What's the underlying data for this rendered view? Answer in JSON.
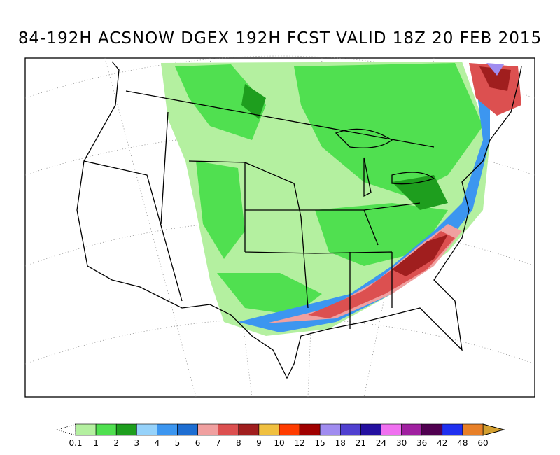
{
  "title": "84-192H ACSNOW DGEX 192H FCST VALID 18Z 20 FEB 2015",
  "colorbar": {
    "levels": [
      0.1,
      1,
      2,
      3,
      4,
      5,
      6,
      7,
      8,
      9,
      10,
      12,
      15,
      18,
      21,
      24,
      30,
      36,
      42,
      48,
      60
    ],
    "colors": [
      "#b4f0a0",
      "#50e050",
      "#1e9e1e",
      "#96d2fa",
      "#3c96f0",
      "#1e6ed2",
      "#f0a0a0",
      "#dc5050",
      "#a01e1e",
      "#f0c040",
      "#ff3c00",
      "#a00000",
      "#a08cf0",
      "#5040d0",
      "#2410a0",
      "#f070f0",
      "#a020a0",
      "#500050",
      "#2030f0",
      "#e88028"
    ],
    "under_color": "#ffffff",
    "over_color": "#d4a030"
  }
}
